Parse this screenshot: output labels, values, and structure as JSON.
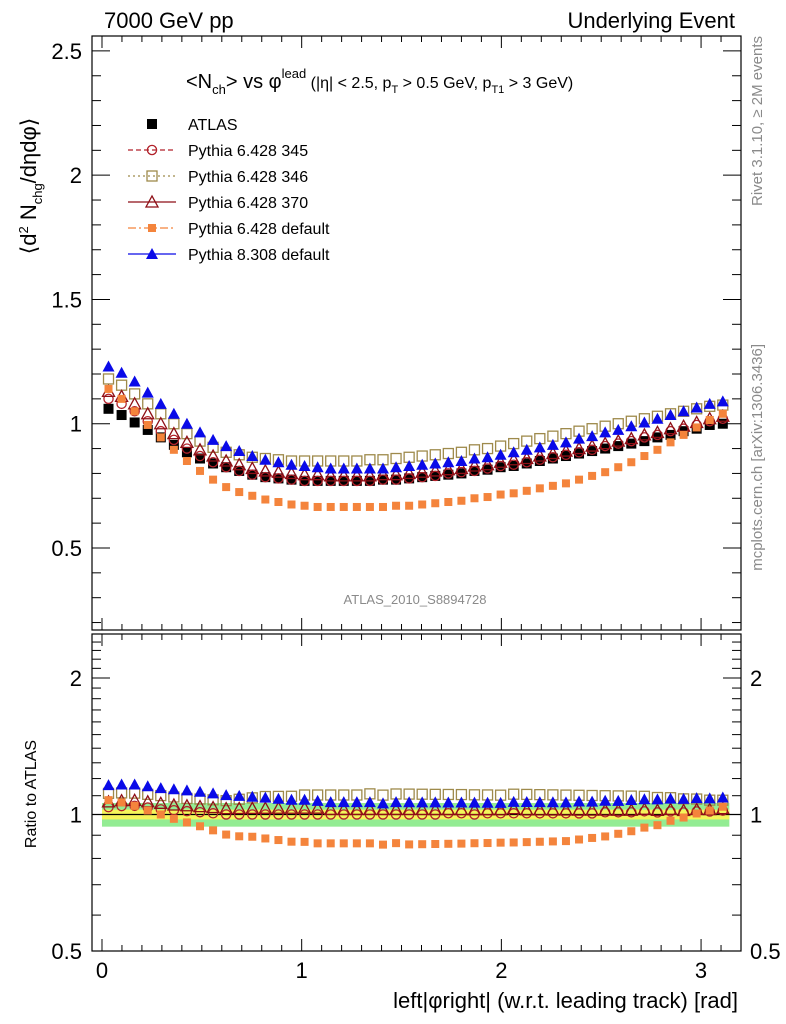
{
  "header": {
    "left": "7000 GeV pp",
    "right": "Underlying Event"
  },
  "side_labels": {
    "rivet": "Rivet 3.1.10, ≥ 2M events",
    "mcplots": "mcplots.cern.ch [arXiv:1306.3436]"
  },
  "watermark": "ATLAS_2010_S8894728",
  "colors": {
    "atlas": "#000000",
    "p345": "#b2222b",
    "p346": "#9e8a4b",
    "p370": "#8e0f16",
    "p6def": "#f4843c",
    "p8def": "#0a0ae8",
    "band_inner": "#f5f55a",
    "band_outer": "#93ec93"
  },
  "chart_data": [
    {
      "type": "scatter",
      "panel": "main",
      "title": "<N_ch> vs φ^lead (|η| < 2.5, p_T > 0.5 GeV, p_T1 > 3 GeV)",
      "ylabel": "⟨d² N_chg/dηdφ⟩",
      "xlim": [
        -0.05,
        3.2
      ],
      "ylim": [
        0.17,
        2.56
      ],
      "yticks": [
        0.5,
        1,
        1.5,
        2,
        2.5
      ],
      "ytick_labels": [
        "0.5",
        "1",
        "1.5",
        "2",
        "2.5"
      ],
      "legend_position": "top-left",
      "x": [
        0.0327,
        0.0982,
        0.1636,
        0.2291,
        0.2945,
        0.36,
        0.4254,
        0.4909,
        0.5563,
        0.6218,
        0.6872,
        0.7527,
        0.8181,
        0.8836,
        0.949,
        1.0145,
        1.0799,
        1.1454,
        1.2108,
        1.2763,
        1.3417,
        1.4072,
        1.4726,
        1.5381,
        1.6035,
        1.669,
        1.7344,
        1.7999,
        1.8653,
        1.9308,
        1.9962,
        2.0617,
        2.1271,
        2.1926,
        2.258,
        2.3235,
        2.3889,
        2.4544,
        2.5198,
        2.5853,
        2.6507,
        2.7162,
        2.7816,
        2.8471,
        2.9125,
        2.978,
        3.0434,
        3.1089
      ],
      "series": [
        {
          "name": "ATLAS",
          "marker": "square",
          "values": [
            1.06,
            1.035,
            1.005,
            0.975,
            0.945,
            0.915,
            0.885,
            0.86,
            0.84,
            0.825,
            0.81,
            0.795,
            0.785,
            0.78,
            0.775,
            0.77,
            0.77,
            0.77,
            0.77,
            0.77,
            0.77,
            0.775,
            0.775,
            0.78,
            0.785,
            0.79,
            0.795,
            0.8,
            0.81,
            0.815,
            0.825,
            0.83,
            0.84,
            0.85,
            0.86,
            0.87,
            0.88,
            0.89,
            0.9,
            0.91,
            0.92,
            0.93,
            0.945,
            0.955,
            0.97,
            0.98,
            0.995,
            1.0
          ]
        },
        {
          "name": "Pythia 6.428 345",
          "marker": "open-circle",
          "values": [
            1.1,
            1.08,
            1.05,
            1.01,
            0.97,
            0.935,
            0.9,
            0.87,
            0.845,
            0.825,
            0.81,
            0.795,
            0.785,
            0.78,
            0.775,
            0.77,
            0.77,
            0.77,
            0.77,
            0.77,
            0.77,
            0.775,
            0.775,
            0.78,
            0.785,
            0.79,
            0.8,
            0.805,
            0.81,
            0.82,
            0.83,
            0.835,
            0.845,
            0.855,
            0.865,
            0.875,
            0.885,
            0.895,
            0.91,
            0.92,
            0.93,
            0.945,
            0.955,
            0.97,
            0.98,
            0.995,
            1.01,
            1.02
          ]
        },
        {
          "name": "Pythia 6.428 346",
          "marker": "open-square",
          "values": [
            1.18,
            1.155,
            1.12,
            1.08,
            1.04,
            1.0,
            0.96,
            0.93,
            0.905,
            0.885,
            0.875,
            0.865,
            0.86,
            0.855,
            0.85,
            0.85,
            0.85,
            0.85,
            0.85,
            0.85,
            0.855,
            0.855,
            0.86,
            0.865,
            0.87,
            0.875,
            0.88,
            0.885,
            0.895,
            0.9,
            0.91,
            0.92,
            0.93,
            0.94,
            0.95,
            0.96,
            0.97,
            0.98,
            0.99,
            1.0,
            1.01,
            1.02,
            1.03,
            1.04,
            1.05,
            1.06,
            1.07,
            1.075
          ]
        },
        {
          "name": "Pythia 6.428 370",
          "marker": "open-triangle",
          "values": [
            1.13,
            1.11,
            1.08,
            1.04,
            1.0,
            0.96,
            0.925,
            0.895,
            0.87,
            0.85,
            0.835,
            0.82,
            0.81,
            0.805,
            0.8,
            0.795,
            0.795,
            0.79,
            0.79,
            0.79,
            0.79,
            0.795,
            0.795,
            0.8,
            0.805,
            0.81,
            0.815,
            0.82,
            0.83,
            0.835,
            0.845,
            0.855,
            0.86,
            0.87,
            0.88,
            0.89,
            0.9,
            0.91,
            0.92,
            0.93,
            0.94,
            0.955,
            0.965,
            0.98,
            0.99,
            1.005,
            1.02,
            1.03
          ]
        },
        {
          "name": "Pythia 6.428 default",
          "marker": "small-square",
          "values": [
            1.14,
            1.1,
            1.05,
            0.995,
            0.945,
            0.895,
            0.85,
            0.81,
            0.775,
            0.745,
            0.725,
            0.71,
            0.695,
            0.685,
            0.675,
            0.67,
            0.665,
            0.665,
            0.665,
            0.665,
            0.665,
            0.665,
            0.67,
            0.67,
            0.675,
            0.68,
            0.685,
            0.69,
            0.7,
            0.705,
            0.715,
            0.72,
            0.73,
            0.74,
            0.75,
            0.76,
            0.775,
            0.79,
            0.805,
            0.825,
            0.845,
            0.87,
            0.895,
            0.925,
            0.955,
            0.985,
            1.015,
            1.04
          ]
        },
        {
          "name": "Pythia 8.308 default",
          "marker": "triangle",
          "values": [
            1.23,
            1.205,
            1.17,
            1.125,
            1.08,
            1.04,
            1.0,
            0.965,
            0.935,
            0.91,
            0.89,
            0.87,
            0.855,
            0.845,
            0.835,
            0.83,
            0.825,
            0.82,
            0.82,
            0.82,
            0.82,
            0.82,
            0.825,
            0.83,
            0.835,
            0.84,
            0.845,
            0.85,
            0.86,
            0.865,
            0.875,
            0.885,
            0.895,
            0.905,
            0.915,
            0.925,
            0.94,
            0.95,
            0.965,
            0.975,
            0.99,
            1.005,
            1.02,
            1.035,
            1.05,
            1.065,
            1.08,
            1.09
          ]
        }
      ]
    },
    {
      "type": "scatter",
      "panel": "ratio",
      "ylabel": "Ratio to ATLAS",
      "xlabel": "left|φright| (w.r.t. leading track) [rad]",
      "xlim": [
        -0.05,
        3.2
      ],
      "ylim": [
        0.5,
        2.5
      ],
      "log_y": true,
      "xticks": [
        0,
        1,
        2,
        3
      ],
      "xtick_labels": [
        "0",
        "1",
        "2",
        "3"
      ],
      "yticks": [
        0.5,
        1,
        2
      ],
      "ytick_labels": [
        "0.5",
        "1",
        "2"
      ],
      "band_yellow": [
        0.975,
        1.025
      ],
      "band_green": [
        0.94,
        1.06
      ],
      "series_ref": "main panel series divided by ATLAS"
    }
  ]
}
